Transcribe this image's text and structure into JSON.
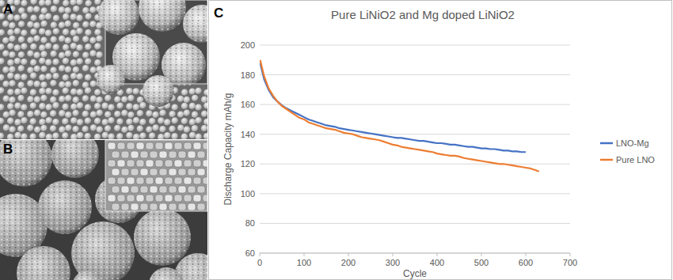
{
  "panels": [
    {
      "label": "A"
    },
    {
      "label": "B"
    },
    {
      "label": "C"
    }
  ],
  "chart_data": {
    "type": "line",
    "title": "Pure LiNiO2 and Mg doped LiNiO2",
    "x_label": "Cycle",
    "y_label": "Discharge Capacity mAh/g",
    "xlim": [
      0,
      700
    ],
    "xticks": [
      0,
      100,
      200,
      300,
      400,
      500,
      600,
      700
    ],
    "ylim": [
      60,
      200
    ],
    "yticks": [
      60,
      80,
      100,
      120,
      140,
      160,
      180,
      200
    ],
    "grid": true,
    "legend": "right",
    "x": [
      1,
      10,
      20,
      30,
      40,
      50,
      60,
      70,
      80,
      90,
      100,
      110,
      120,
      130,
      140,
      150,
      160,
      170,
      180,
      190,
      200,
      210,
      220,
      230,
      240,
      250,
      260,
      270,
      280,
      290,
      300,
      310,
      320,
      330,
      340,
      350,
      360,
      370,
      380,
      390,
      400,
      410,
      420,
      430,
      440,
      450,
      460,
      470,
      480,
      490,
      500,
      510,
      520,
      530,
      540,
      550,
      560,
      570,
      580,
      590,
      600,
      610,
      620,
      630
    ],
    "series": [
      {
        "name": "LNO-Mg",
        "color": "#4472c4",
        "line_style": "solid",
        "values": [
          188,
          177,
          170,
          165,
          162,
          159.5,
          157.5,
          156,
          154.5,
          153,
          151.5,
          150,
          149,
          148,
          147,
          146,
          145.5,
          145,
          144,
          143.5,
          143,
          142.5,
          142,
          141.5,
          141,
          140.5,
          140,
          139.5,
          139,
          138.5,
          138,
          137.5,
          137.5,
          137,
          136.5,
          136,
          135.5,
          135.5,
          135,
          134.5,
          134,
          134,
          133.5,
          133,
          133,
          132.5,
          132,
          131.5,
          131.5,
          131,
          130.5,
          130.5,
          130,
          130,
          129.5,
          129,
          129,
          128.5,
          128.5,
          128,
          128,
          null,
          null,
          null
        ]
      },
      {
        "name": "Pure LNO",
        "color": "#ed7d31",
        "line_style": "solid",
        "values": [
          190,
          179,
          171,
          166,
          162,
          159,
          157,
          155,
          153,
          151,
          150,
          148,
          147,
          146,
          145,
          144,
          143.5,
          143,
          142,
          141,
          140.5,
          140,
          139,
          138,
          137.5,
          137,
          136.5,
          136,
          135,
          134,
          133,
          132.5,
          131.5,
          131,
          130.5,
          130,
          129.5,
          129,
          128.5,
          128,
          127,
          126.5,
          126,
          125.5,
          125.5,
          125,
          124,
          123.5,
          123,
          122.5,
          122,
          121.5,
          121,
          120.5,
          120,
          120,
          119.5,
          119,
          118.5,
          118,
          117.5,
          117,
          116,
          115
        ]
      }
    ]
  }
}
